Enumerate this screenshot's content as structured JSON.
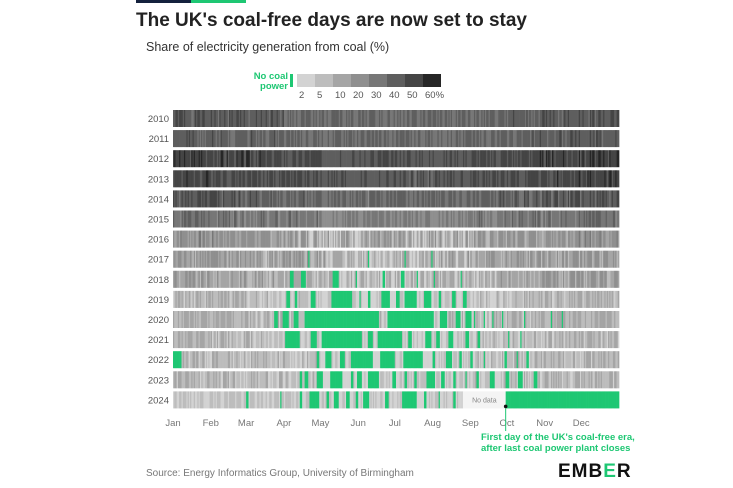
{
  "title": "The UK's coal-free days are now set to stay",
  "subtitle": "Share of electricity generation from coal (%)",
  "source": "Source: Energy Informatics Group, University of Birmingham",
  "logo": {
    "main": "EMB",
    "accent": "E",
    "tail": "R"
  },
  "annotation": {
    "line1": "First day of the UK's coal-free era,",
    "line2": "after last coal power plant closes"
  },
  "colors": {
    "nocoal": "#1ec773",
    "nodata": "#f4f4f4",
    "scale": [
      "#d3d3d3",
      "#bdbdbd",
      "#a5a5a5",
      "#8f8f8f",
      "#777777",
      "#5e5e5e",
      "#454545",
      "#262626"
    ]
  },
  "chart_data": {
    "type": "heatmap",
    "title": "The UK's coal-free days are now set to stay",
    "subtitle": "Share of electricity generation from coal (%)",
    "x_axis": "day of year",
    "months": [
      "Jan",
      "Feb",
      "Mar",
      "Apr",
      "May",
      "Jun",
      "Jul",
      "Aug",
      "Sep",
      "Oct",
      "Nov",
      "Dec"
    ],
    "legend": {
      "nocoal_label": "No coal power",
      "tick_labels": [
        "2",
        "5",
        "10",
        "20",
        "30",
        "40",
        "50",
        "60%"
      ],
      "bins": [
        2,
        5,
        10,
        20,
        30,
        40,
        50,
        60
      ]
    },
    "no_data_label": "No data",
    "rows": [
      {
        "year": "2010",
        "level": 33,
        "spread": 8,
        "nocoal_periods": []
      },
      {
        "year": "2011",
        "level": 32,
        "spread": 8,
        "nocoal_periods": []
      },
      {
        "year": "2012",
        "level": 42,
        "spread": 8,
        "nocoal_periods": []
      },
      {
        "year": "2013",
        "level": 40,
        "spread": 8,
        "nocoal_periods": []
      },
      {
        "year": "2014",
        "level": 33,
        "spread": 9,
        "nocoal_periods": []
      },
      {
        "year": "2015",
        "level": 24,
        "spread": 9,
        "nocoal_periods": []
      },
      {
        "year": "2016",
        "level": 10,
        "spread": 8,
        "nocoal_periods": []
      },
      {
        "year": "2017",
        "level": 7,
        "spread": 6,
        "nocoal_periods": [
          [
            111,
            112
          ],
          [
            160,
            161
          ],
          [
            190,
            191
          ],
          [
            212,
            213
          ]
        ]
      },
      {
        "year": "2018",
        "level": 6,
        "spread": 5,
        "nocoal_periods": [
          [
            96,
            99
          ],
          [
            105,
            109
          ],
          [
            131,
            136
          ],
          [
            150,
            151
          ],
          [
            172,
            174
          ],
          [
            187,
            190
          ],
          [
            200,
            201
          ],
          [
            214,
            215
          ],
          [
            236,
            237
          ]
        ]
      },
      {
        "year": "2019",
        "level": 3,
        "spread": 3,
        "nocoal_periods": [
          [
            93,
            96
          ],
          [
            100,
            102
          ],
          [
            113,
            117
          ],
          [
            130,
            147
          ],
          [
            153,
            154
          ],
          [
            160,
            162
          ],
          [
            171,
            178
          ],
          [
            183,
            186
          ],
          [
            190,
            200
          ],
          [
            206,
            212
          ],
          [
            218,
            220
          ],
          [
            229,
            232
          ],
          [
            238,
            241
          ]
        ]
      },
      {
        "year": "2020",
        "level": 4,
        "spread": 3,
        "nocoal_periods": [
          [
            83,
            86
          ],
          [
            90,
            95
          ],
          [
            99,
            103
          ],
          [
            108,
            169
          ],
          [
            176,
            214
          ],
          [
            219,
            225
          ],
          [
            232,
            236
          ],
          [
            240,
            245
          ],
          [
            247,
            248
          ],
          [
            255,
            256
          ],
          [
            262,
            263
          ],
          [
            270,
            271
          ],
          [
            288,
            289
          ],
          [
            310,
            311
          ],
          [
            319,
            320
          ]
        ]
      },
      {
        "year": "2021",
        "level": 3,
        "spread": 3,
        "nocoal_periods": [
          [
            92,
            104
          ],
          [
            113,
            118
          ],
          [
            122,
            155
          ],
          [
            160,
            164
          ],
          [
            168,
            188
          ],
          [
            193,
            196
          ],
          [
            207,
            212
          ],
          [
            216,
            219
          ],
          [
            226,
            230
          ],
          [
            240,
            243
          ],
          [
            250,
            252
          ],
          [
            275,
            276
          ],
          [
            285,
            286
          ]
        ]
      },
      {
        "year": "2022",
        "level": 3,
        "spread": 3,
        "nocoal_periods": [
          [
            0,
            7
          ],
          [
            118,
            120
          ],
          [
            125,
            130
          ],
          [
            137,
            141
          ],
          [
            146,
            164
          ],
          [
            170,
            182
          ],
          [
            189,
            205
          ],
          [
            213,
            215
          ],
          [
            224,
            229
          ],
          [
            235,
            237
          ],
          [
            244,
            246
          ],
          [
            255,
            256
          ],
          [
            272,
            274
          ],
          [
            282,
            283
          ],
          [
            290,
            292
          ]
        ]
      },
      {
        "year": "2023",
        "level": 3,
        "spread": 3,
        "nocoal_periods": [
          [
            104,
            106
          ],
          [
            108,
            111
          ],
          [
            118,
            123
          ],
          [
            129,
            139
          ],
          [
            146,
            148
          ],
          [
            151,
            155
          ],
          [
            160,
            169
          ],
          [
            180,
            183
          ],
          [
            190,
            192
          ],
          [
            198,
            200
          ],
          [
            208,
            215
          ],
          [
            220,
            223
          ],
          [
            230,
            232
          ],
          [
            240,
            241
          ],
          [
            249,
            251
          ],
          [
            260,
            264
          ],
          [
            273,
            276
          ],
          [
            283,
            287
          ],
          [
            296,
            299
          ]
        ]
      },
      {
        "year": "2024",
        "level": 2,
        "spread": 2,
        "nocoal_periods": [
          [
            60,
            62
          ],
          [
            88,
            89
          ],
          [
            104,
            106
          ],
          [
            112,
            120
          ],
          [
            126,
            128
          ],
          [
            132,
            136
          ],
          [
            142,
            145
          ],
          [
            150,
            152
          ],
          [
            156,
            161
          ],
          [
            174,
            177
          ],
          [
            188,
            200
          ],
          [
            206,
            208
          ],
          [
            218,
            219
          ],
          [
            230,
            232
          ],
          [
            273,
            366
          ]
        ],
        "no_data": [
          [
            238,
            273
          ]
        ]
      }
    ]
  }
}
